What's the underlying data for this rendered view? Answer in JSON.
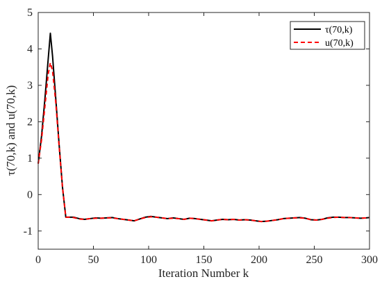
{
  "chart_data": {
    "type": "line",
    "title": "",
    "xlabel": "Iteration Number k",
    "ylabel": "τ(70,k) and u(70,k)",
    "xlim": [
      0,
      300
    ],
    "ylim": [
      -1.5,
      5
    ],
    "xticks": [
      0,
      50,
      100,
      150,
      200,
      250,
      300
    ],
    "xtick_labels": [
      "0",
      "50",
      "100",
      "150",
      "200",
      "250",
      "300"
    ],
    "yticks": [
      -1,
      0,
      1,
      2,
      3,
      4,
      5
    ],
    "ytick_labels": [
      "-1",
      "0",
      "1",
      "2",
      "3",
      "4",
      "5"
    ],
    "grid": false,
    "legend_position": "top-right",
    "series": [
      {
        "name": "τ(70,k)",
        "color": "#000000",
        "dash": "solid",
        "x": [
          0,
          3,
          6,
          9,
          11,
          13,
          16,
          19,
          22,
          25,
          28,
          32,
          37,
          42,
          47,
          52,
          57,
          62,
          67,
          72,
          77,
          82,
          87,
          92,
          97,
          102,
          107,
          112,
          117,
          122,
          127,
          132,
          137,
          142,
          147,
          152,
          157,
          162,
          167,
          172,
          177,
          182,
          187,
          192,
          197,
          202,
          207,
          212,
          217,
          222,
          227,
          232,
          237,
          242,
          247,
          252,
          257,
          262,
          267,
          272,
          277,
          282,
          287,
          292,
          297,
          300
        ],
        "y": [
          0.85,
          1.6,
          2.6,
          3.7,
          4.43,
          3.8,
          2.6,
          1.35,
          0.2,
          -0.62,
          -0.62,
          -0.62,
          -0.66,
          -0.68,
          -0.66,
          -0.64,
          -0.65,
          -0.64,
          -0.63,
          -0.66,
          -0.68,
          -0.7,
          -0.72,
          -0.67,
          -0.62,
          -0.6,
          -0.62,
          -0.64,
          -0.66,
          -0.64,
          -0.66,
          -0.68,
          -0.65,
          -0.66,
          -0.68,
          -0.7,
          -0.72,
          -0.7,
          -0.68,
          -0.69,
          -0.68,
          -0.7,
          -0.69,
          -0.7,
          -0.72,
          -0.74,
          -0.73,
          -0.71,
          -0.69,
          -0.66,
          -0.65,
          -0.64,
          -0.63,
          -0.65,
          -0.69,
          -0.7,
          -0.68,
          -0.64,
          -0.62,
          -0.62,
          -0.63,
          -0.63,
          -0.64,
          -0.65,
          -0.64,
          -0.63
        ]
      },
      {
        "name": "u(70,k)",
        "color": "#ff0000",
        "dash": "dashed",
        "x": [
          0,
          3,
          6,
          9,
          11,
          13,
          16,
          19,
          22,
          25,
          28,
          32,
          37,
          42,
          47,
          52,
          57,
          62,
          67,
          72,
          77,
          82,
          87,
          92,
          97,
          102,
          107,
          112,
          117,
          122,
          127,
          132,
          137,
          142,
          147,
          152,
          157,
          162,
          167,
          172,
          177,
          182,
          187,
          192,
          197,
          202,
          207,
          212,
          217,
          222,
          227,
          232,
          237,
          242,
          247,
          252,
          257,
          262,
          267,
          272,
          277,
          282,
          287,
          292,
          297,
          300
        ],
        "y": [
          0.85,
          1.5,
          2.4,
          3.3,
          3.62,
          3.4,
          2.5,
          1.3,
          0.2,
          -0.62,
          -0.62,
          -0.63,
          -0.67,
          -0.68,
          -0.66,
          -0.65,
          -0.65,
          -0.64,
          -0.64,
          -0.66,
          -0.68,
          -0.7,
          -0.72,
          -0.67,
          -0.63,
          -0.61,
          -0.62,
          -0.64,
          -0.66,
          -0.65,
          -0.66,
          -0.68,
          -0.65,
          -0.66,
          -0.68,
          -0.7,
          -0.72,
          -0.7,
          -0.68,
          -0.69,
          -0.68,
          -0.7,
          -0.69,
          -0.7,
          -0.72,
          -0.74,
          -0.73,
          -0.71,
          -0.69,
          -0.66,
          -0.65,
          -0.64,
          -0.64,
          -0.65,
          -0.69,
          -0.7,
          -0.68,
          -0.65,
          -0.63,
          -0.62,
          -0.63,
          -0.63,
          -0.64,
          -0.65,
          -0.64,
          -0.63
        ]
      }
    ]
  }
}
